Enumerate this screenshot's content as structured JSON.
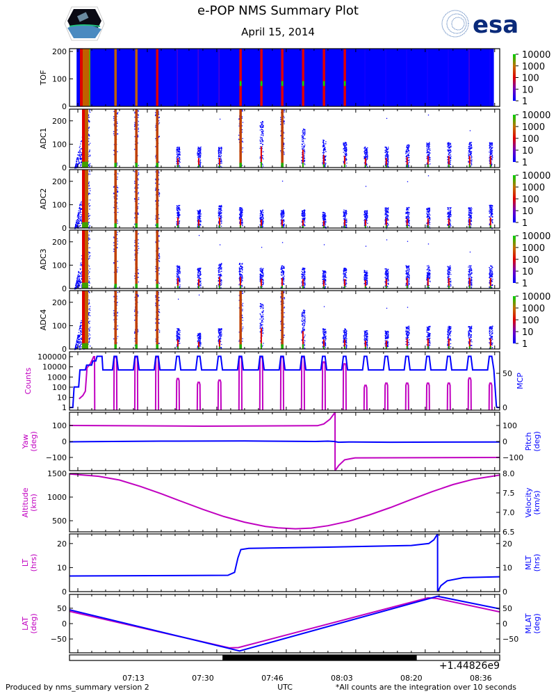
{
  "header": {
    "title": "e-POP NMS Summary Plot",
    "date": "April 15, 2014",
    "logo_left": "CASSIOPE",
    "logo_right": "esa"
  },
  "footer": {
    "left": "Produced by nms_summary version 2",
    "right": "*All counts are the integration over 10 seconds"
  },
  "colors": {
    "magenta": "#c000c0",
    "blue": "#0000ff",
    "esa": "#0a2a7a"
  },
  "chart_data": {
    "type": "multi-panel",
    "xlabel": "UTC",
    "x_units": "minutes after 07:00 UTC",
    "xlim": [
      -2.0,
      101.2
    ],
    "xticks": [
      {
        "m": 13.33,
        "label": "07:13"
      },
      {
        "m": 30,
        "label": "07:30"
      },
      {
        "m": 46.67,
        "label": "07:46"
      },
      {
        "m": 63.33,
        "label": "08:03"
      },
      {
        "m": 80,
        "label": "08:20"
      },
      {
        "m": 96.67,
        "label": "08:36"
      }
    ],
    "x_offset_label": "+1.44826e9",
    "eclipse": [
      34.7,
      81.3
    ],
    "colorbar_ticks": [
      "1",
      "10",
      "100",
      "1000",
      "10000"
    ],
    "initial_pass": [
      0.5,
      4.0
    ],
    "pass_minutes": [
      9,
      14,
      19,
      24,
      29,
      34,
      39,
      44,
      49,
      54,
      59,
      64,
      69,
      74,
      79,
      84,
      89,
      94,
      99
    ],
    "spectrograms": [
      {
        "id": "tof",
        "ylabel": "TOF",
        "ylim": [
          0,
          210
        ],
        "yticks": [
          "0",
          "100",
          "200"
        ],
        "ytick_values": [
          0,
          100,
          200
        ],
        "pass_log_intensity": [
          3,
          3,
          2,
          0.6,
          0.6,
          0.6,
          2.2,
          2.2,
          2.2,
          2.2,
          2.2,
          2,
          0.4,
          0.4,
          0.4,
          0.4,
          0.4,
          0.6,
          0.4
        ]
      },
      {
        "id": "adc1",
        "ylabel": "ADC1",
        "ylim": [
          0,
          250
        ],
        "yticks": [
          "0",
          "100",
          "200"
        ],
        "ytick_values": [
          0,
          100,
          200
        ],
        "pass_heights": [
          250,
          250,
          250,
          90,
          90,
          90,
          250,
          200,
          250,
          170,
          120,
          110,
          90,
          90,
          100,
          110,
          110,
          110,
          110
        ]
      },
      {
        "id": "adc2",
        "ylabel": "ADC2",
        "ylim": [
          0,
          250
        ],
        "yticks": [
          "0",
          "100",
          "200"
        ],
        "ytick_values": [
          0,
          100,
          200
        ],
        "pass_heights": [
          250,
          250,
          250,
          100,
          80,
          100,
          90,
          80,
          80,
          80,
          70,
          80,
          80,
          90,
          90,
          90,
          90,
          90,
          100
        ]
      },
      {
        "id": "adc3",
        "ylabel": "ADC3",
        "ylim": [
          0,
          250
        ],
        "yticks": [
          "0",
          "100",
          "200"
        ],
        "ytick_values": [
          0,
          100,
          200
        ],
        "pass_heights": [
          250,
          250,
          250,
          100,
          90,
          110,
          110,
          90,
          100,
          90,
          80,
          90,
          80,
          90,
          100,
          100,
          100,
          100,
          100
        ]
      },
      {
        "id": "adc4",
        "ylabel": "ADC4",
        "ylim": [
          0,
          250
        ],
        "yticks": [
          "0",
          "100",
          "200"
        ],
        "ytick_values": [
          0,
          100,
          200
        ],
        "pass_heights": [
          250,
          250,
          250,
          90,
          70,
          90,
          250,
          200,
          250,
          170,
          90,
          90,
          80,
          80,
          100,
          100,
          100,
          100,
          100
        ]
      }
    ],
    "counts_panel": {
      "ylabel_left": "Counts",
      "ylabel_right": "MCP",
      "left_scale": "log",
      "ylim_left": [
        0.55,
        300000
      ],
      "yticks_left": [
        "1",
        "10",
        "100",
        "1000",
        "10000",
        "100000"
      ],
      "ytick_values_left": [
        1,
        10,
        100,
        1000,
        10000,
        100000
      ],
      "ylim_right": [
        -4,
        81.6
      ],
      "yticks_right": [
        "0",
        "50"
      ],
      "ytick_values_right": [
        0,
        50
      ],
      "counts_initial": [
        [
          0.3,
          7
        ],
        [
          1.2,
          15
        ],
        [
          1.8,
          40
        ],
        [
          2.2,
          8000
        ],
        [
          3.0,
          20000
        ],
        [
          3.8,
          100000
        ],
        [
          4.0,
          100000
        ]
      ],
      "counts_pass_peaks": [
        100000,
        100000,
        100000,
        700,
        300,
        500,
        100000,
        100000,
        100000,
        100000,
        30000,
        20000,
        150,
        250,
        250,
        250,
        250,
        800,
        250
      ],
      "mcp_initial": [
        [
          -2,
          0
        ],
        [
          -1.2,
          0
        ],
        [
          -0.9,
          30
        ],
        [
          0.2,
          30
        ],
        [
          0.5,
          55
        ],
        [
          1.8,
          55
        ],
        [
          2.1,
          62
        ],
        [
          3.3,
          62
        ],
        [
          3.6,
          68
        ],
        [
          4.3,
          68
        ],
        [
          4.6,
          75
        ],
        [
          5.8,
          75
        ],
        [
          6.0,
          55
        ]
      ],
      "mcp_baseline": 55,
      "mcp_peak": 75,
      "mcp_end": [
        [
          99.8,
          55
        ],
        [
          100.4,
          2
        ],
        [
          100.6,
          0
        ],
        [
          101.2,
          0
        ]
      ]
    },
    "line_panels": [
      {
        "id": "attitude",
        "ylabel_left": [
          "Yaw",
          "(deg)"
        ],
        "ylabel_right": [
          "Pitch",
          "(deg)"
        ],
        "ylim": [
          -183,
          183
        ],
        "yticks_left": [
          "−100",
          "0",
          "100"
        ],
        "yticks_right": [
          "−100",
          "0",
          "100"
        ],
        "ytick_values": [
          -100,
          0,
          100
        ],
        "series": [
          {
            "name": "Yaw",
            "color": "#c000c0",
            "points": [
              [
                -2,
                100
              ],
              [
                30,
                96
              ],
              [
                57.5,
                99
              ],
              [
                59,
                110
              ],
              [
                60.5,
                140
              ],
              [
                61.7,
                182
              ],
              [
                61.71,
                -183
              ],
              [
                62.6,
                -150
              ],
              [
                64,
                -115
              ],
              [
                66.5,
                -103
              ],
              [
                101.2,
                -100
              ]
            ]
          },
          {
            "name": "Pitch",
            "color": "#0000ff",
            "points": [
              [
                -2,
                -2
              ],
              [
                20,
                2
              ],
              [
                40,
                3
              ],
              [
                57,
                0
              ],
              [
                60,
                2
              ],
              [
                61.5,
                0
              ],
              [
                62.5,
                -5
              ],
              [
                65,
                -3
              ],
              [
                75,
                -5
              ],
              [
                101.2,
                -3
              ]
            ]
          }
        ]
      },
      {
        "id": "altitude",
        "ylabel_left": [
          "Altitude",
          "(km)"
        ],
        "ylabel_right": [
          "Velocity",
          "(km/s)"
        ],
        "ylim": [
          265,
          1500
        ],
        "yticks_left": [
          "500",
          "1000",
          "1500"
        ],
        "ytick_values": [
          500,
          1000,
          1500
        ],
        "yticks_right": [
          "6.5",
          "7.0",
          "7.5",
          "8.0"
        ],
        "ylim_right": [
          6.5,
          8.0
        ],
        "ytick_values_right": [
          6.5,
          7.0,
          7.5,
          8.0
        ],
        "series": [
          {
            "name": "Altitude",
            "color": "#c000c0",
            "points": [
              [
                -2,
                1490
              ],
              [
                5,
                1440
              ],
              [
                10,
                1360
              ],
              [
                15,
                1225
              ],
              [
                20,
                1070
              ],
              [
                25,
                905
              ],
              [
                30,
                740
              ],
              [
                35,
                590
              ],
              [
                40,
                470
              ],
              [
                45,
                380
              ],
              [
                48,
                350
              ],
              [
                52.2,
                330
              ],
              [
                56,
                345
              ],
              [
                60,
                395
              ],
              [
                65,
                490
              ],
              [
                70,
                625
              ],
              [
                75,
                780
              ],
              [
                80,
                950
              ],
              [
                85,
                1115
              ],
              [
                90,
                1265
              ],
              [
                95,
                1380
              ],
              [
                101.2,
                1465
              ]
            ]
          }
        ]
      },
      {
        "id": "lt",
        "ylabel_left": [
          "LT",
          "(hrs)"
        ],
        "ylabel_right": [
          "MLT",
          "(hrs)"
        ],
        "ylim": [
          0,
          24
        ],
        "yticks_left": [
          "0",
          "10",
          "20"
        ],
        "yticks_right": [
          "0",
          "10",
          "20"
        ],
        "ytick_values": [
          0,
          10,
          20
        ],
        "series": [
          {
            "name": "LT",
            "color": "#0000ff",
            "points": [
              [
                -2,
                6.5
              ],
              [
                36,
                6.8
              ],
              [
                37.6,
                8
              ],
              [
                38.4,
                14
              ],
              [
                39.1,
                17.5
              ],
              [
                41,
                18
              ],
              [
                60,
                18.5
              ],
              [
                80,
                19.2
              ],
              [
                84.2,
                20
              ],
              [
                85.4,
                21.5
              ],
              [
                86.3,
                24
              ],
              [
                86.31,
                0
              ],
              [
                87.1,
                2.5
              ],
              [
                88.6,
                4.5
              ],
              [
                92.5,
                5.8
              ],
              [
                101.2,
                6.2
              ]
            ]
          }
        ]
      },
      {
        "id": "lat",
        "ylabel_left": [
          "LAT",
          "(deg)"
        ],
        "ylabel_right": [
          "MLAT",
          "(deg)"
        ],
        "ylim": [
          -95,
          95
        ],
        "yticks_left": [
          "−50",
          "0",
          "50"
        ],
        "yticks_right": [
          "−50",
          "0",
          "50"
        ],
        "ytick_values": [
          -50,
          0,
          50
        ],
        "series": [
          {
            "name": "LAT",
            "color": "#c000c0",
            "points": [
              [
                -2,
                40
              ],
              [
                36.3,
                -79
              ],
              [
                38.5,
                -78
              ],
              [
                84,
                84
              ],
              [
                86,
                82
              ],
              [
                101.2,
                38
              ]
            ]
          },
          {
            "name": "MLAT",
            "color": "#0000ff",
            "points": [
              [
                -2,
                45
              ],
              [
                38.8,
                -89
              ],
              [
                86.3,
                89
              ],
              [
                101.2,
                48
              ]
            ]
          }
        ]
      }
    ]
  }
}
